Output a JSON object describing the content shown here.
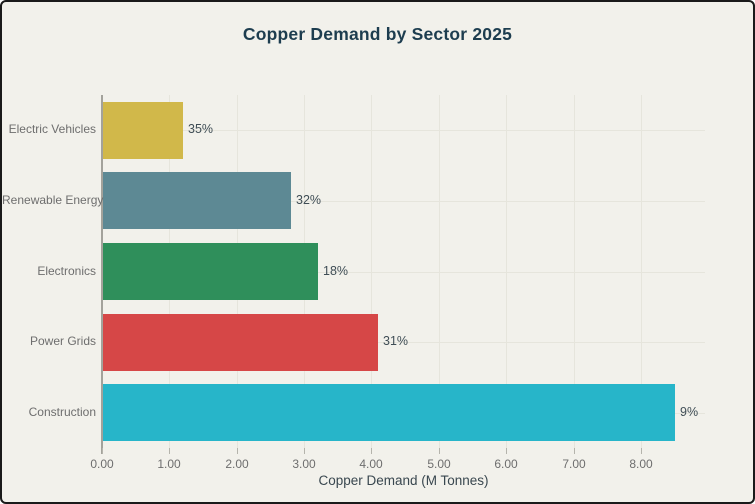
{
  "title": "Copper Demand by Sector 2025",
  "chart_data": {
    "type": "bar",
    "orientation": "horizontal",
    "title": "Copper Demand by Sector 2025",
    "xlabel": "Copper Demand (M Tonnes)",
    "ylabel": "",
    "categories": [
      "Electric Vehicles",
      "Renewable Energy",
      "Electronics",
      "Power Grids",
      "Construction"
    ],
    "values": [
      1.2,
      2.8,
      3.2,
      4.1,
      8.5
    ],
    "bar_labels": [
      "35%",
      "32%",
      "18%",
      "31%",
      "9%"
    ],
    "bar_colors": [
      "#d1b84a",
      "#5d8994",
      "#2f8f5b",
      "#d64747",
      "#27b5c9"
    ],
    "xlim": [
      0,
      8.95
    ],
    "xticks": [
      0,
      1,
      2,
      3,
      4,
      5,
      6,
      7,
      8
    ],
    "xtick_labels": [
      "0.00",
      "1.00",
      "2.00",
      "3.00",
      "4.00",
      "5.00",
      "6.00",
      "7.00",
      "8.00"
    ],
    "grid": true,
    "legend": false
  },
  "colors": {
    "background": "#f2f1eb",
    "frame_border": "#1a1a1a",
    "title_text": "#1d3d4f",
    "muted_text": "#6e6e6e",
    "value_text": "#3f4d55",
    "axis_title_text": "#39474f",
    "gridline": "#e6e5dc",
    "y_axis_line": "#a3a29b"
  }
}
